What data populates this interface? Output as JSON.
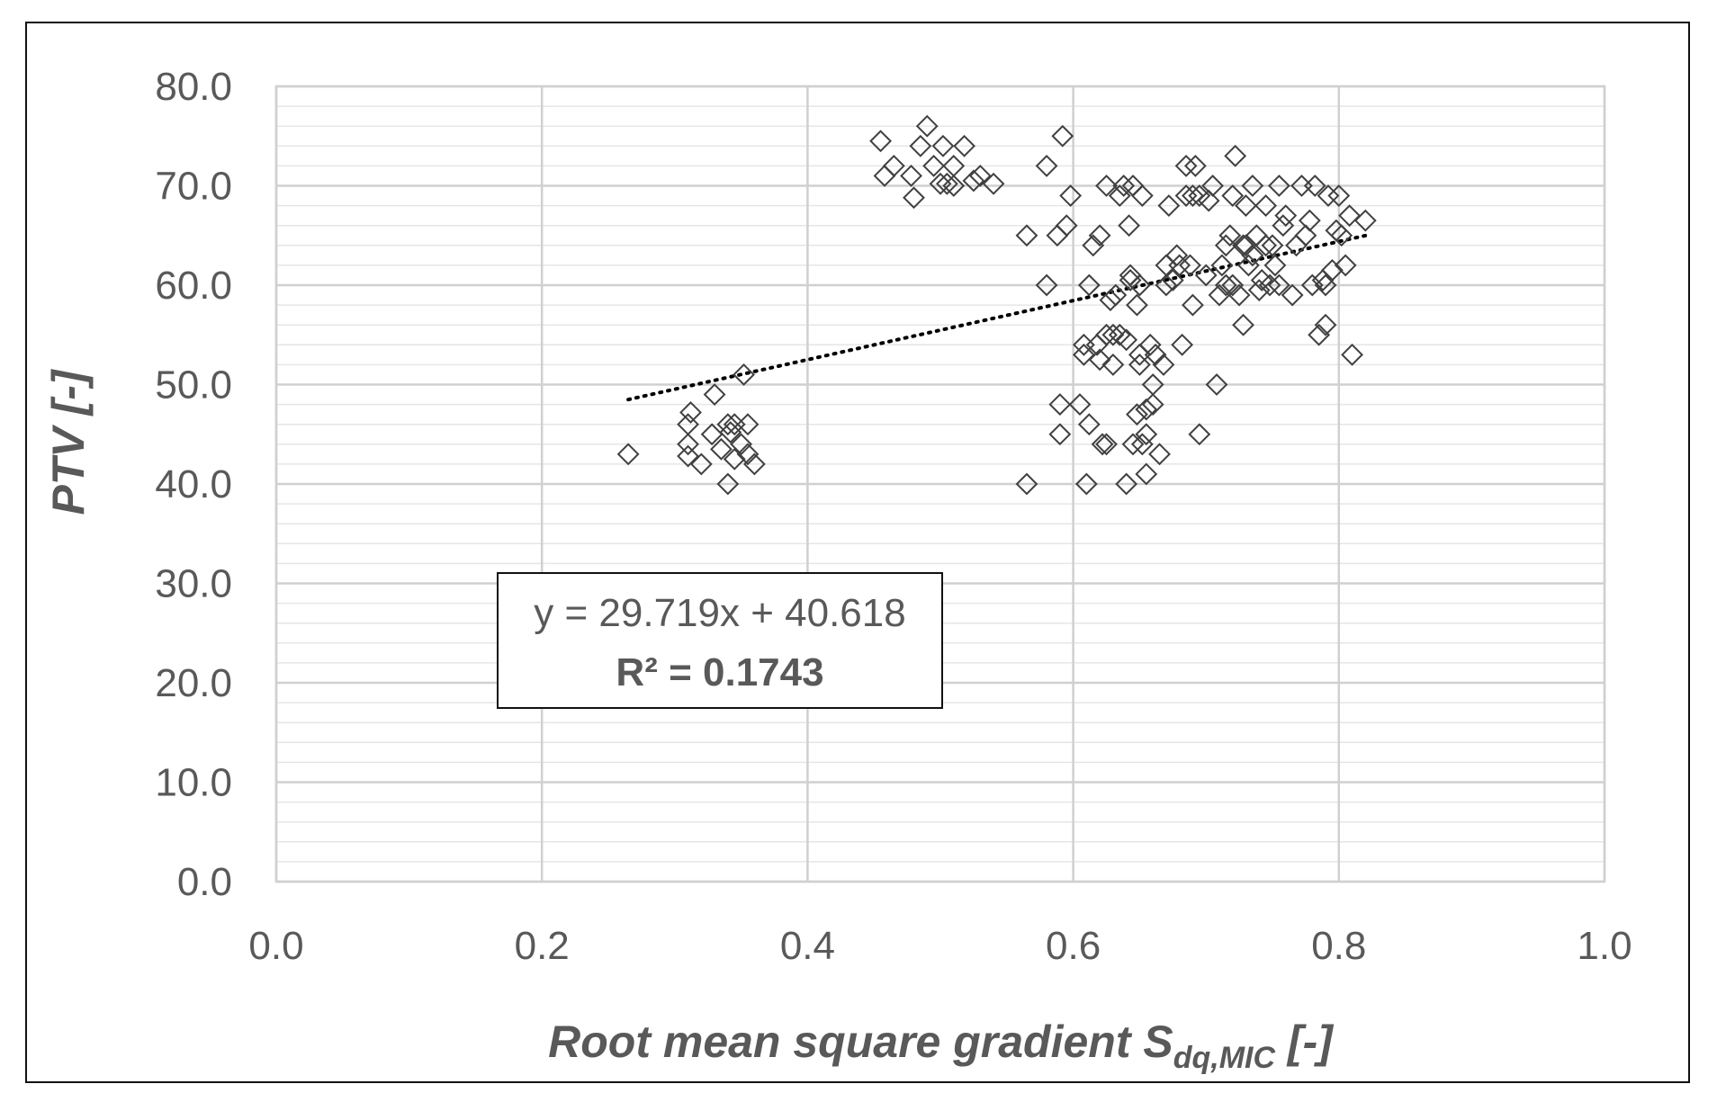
{
  "chart_data": {
    "type": "scatter",
    "title": "",
    "xlabel": "Root mean square gradient S",
    "xlabel_subscript": "dq,MIC",
    "xlabel_suffix": " [-]",
    "ylabel": "PTV [-]",
    "xlim": [
      0,
      1
    ],
    "ylim": [
      0,
      80
    ],
    "x_ticks": [
      "0.0",
      "0.2",
      "0.4",
      "0.6",
      "0.8",
      "1.0"
    ],
    "y_ticks": [
      "0.0",
      "10.0",
      "20.0",
      "30.0",
      "40.0",
      "50.0",
      "60.0",
      "70.0",
      "80.0"
    ],
    "grid": true,
    "marker": "diamond-open",
    "marker_color": "#404040",
    "trendline": {
      "type": "linear",
      "slope": 29.719,
      "intercept": 40.618,
      "x_range": [
        0.265,
        0.82
      ],
      "style": "dotted",
      "color": "#000000"
    },
    "equation_label": "y = 29.719x + 40.618",
    "r2_label": "R² = 0.1743",
    "points": [
      [
        0.265,
        43.0
      ],
      [
        0.31,
        42.8
      ],
      [
        0.31,
        44.0
      ],
      [
        0.31,
        46.0
      ],
      [
        0.312,
        47.2
      ],
      [
        0.32,
        42.0
      ],
      [
        0.328,
        45.0
      ],
      [
        0.33,
        49.0
      ],
      [
        0.335,
        43.5
      ],
      [
        0.34,
        40.0
      ],
      [
        0.34,
        46.0
      ],
      [
        0.342,
        45.2
      ],
      [
        0.345,
        42.5
      ],
      [
        0.345,
        46.0
      ],
      [
        0.35,
        44.0
      ],
      [
        0.352,
        51.0
      ],
      [
        0.355,
        46.0
      ],
      [
        0.355,
        43.0
      ],
      [
        0.36,
        42.0
      ],
      [
        0.455,
        74.5
      ],
      [
        0.458,
        71.0
      ],
      [
        0.465,
        72.0
      ],
      [
        0.478,
        71.0
      ],
      [
        0.48,
        68.8
      ],
      [
        0.485,
        74.0
      ],
      [
        0.49,
        76.0
      ],
      [
        0.495,
        72.0
      ],
      [
        0.5,
        70.2
      ],
      [
        0.502,
        74.0
      ],
      [
        0.505,
        70.2
      ],
      [
        0.51,
        72.0
      ],
      [
        0.51,
        70.0
      ],
      [
        0.518,
        74.0
      ],
      [
        0.525,
        70.5
      ],
      [
        0.53,
        71.0
      ],
      [
        0.54,
        70.2
      ],
      [
        0.565,
        40.0
      ],
      [
        0.565,
        65.0
      ],
      [
        0.58,
        60.0
      ],
      [
        0.58,
        72.0
      ],
      [
        0.588,
        65.0
      ],
      [
        0.59,
        45.0
      ],
      [
        0.59,
        48.0
      ],
      [
        0.592,
        75.0
      ],
      [
        0.595,
        66.0
      ],
      [
        0.598,
        69.0
      ],
      [
        0.605,
        48.0
      ],
      [
        0.608,
        53.0
      ],
      [
        0.608,
        54.0
      ],
      [
        0.61,
        40.0
      ],
      [
        0.612,
        60.0
      ],
      [
        0.612,
        46.0
      ],
      [
        0.615,
        64.0
      ],
      [
        0.618,
        54.0
      ],
      [
        0.62,
        52.5
      ],
      [
        0.62,
        65.0
      ],
      [
        0.622,
        44.0
      ],
      [
        0.625,
        44.0
      ],
      [
        0.625,
        55.0
      ],
      [
        0.625,
        70.0
      ],
      [
        0.628,
        58.5
      ],
      [
        0.63,
        55.0
      ],
      [
        0.63,
        52.0
      ],
      [
        0.632,
        59.0
      ],
      [
        0.635,
        55.0
      ],
      [
        0.635,
        69.0
      ],
      [
        0.638,
        70.0
      ],
      [
        0.64,
        54.5
      ],
      [
        0.64,
        40.0
      ],
      [
        0.642,
        66.0
      ],
      [
        0.643,
        60.5
      ],
      [
        0.643,
        61.0
      ],
      [
        0.645,
        44.0
      ],
      [
        0.645,
        70.0
      ],
      [
        0.648,
        58.0
      ],
      [
        0.648,
        47.0
      ],
      [
        0.65,
        52.0
      ],
      [
        0.65,
        53.0
      ],
      [
        0.65,
        60.0
      ],
      [
        0.652,
        44.0
      ],
      [
        0.652,
        69.0
      ],
      [
        0.655,
        45.0
      ],
      [
        0.655,
        41.0
      ],
      [
        0.655,
        47.5
      ],
      [
        0.658,
        54.0
      ],
      [
        0.66,
        50.0
      ],
      [
        0.66,
        48.0
      ],
      [
        0.662,
        53.0
      ],
      [
        0.665,
        43.0
      ],
      [
        0.668,
        52.0
      ],
      [
        0.67,
        60.0
      ],
      [
        0.67,
        62.0
      ],
      [
        0.672,
        68.0
      ],
      [
        0.675,
        60.5
      ],
      [
        0.678,
        63.0
      ],
      [
        0.68,
        62.0
      ],
      [
        0.682,
        54.0
      ],
      [
        0.685,
        72.0
      ],
      [
        0.685,
        69.0
      ],
      [
        0.688,
        62.0
      ],
      [
        0.69,
        69.0
      ],
      [
        0.69,
        58.0
      ],
      [
        0.692,
        72.0
      ],
      [
        0.695,
        45.0
      ],
      [
        0.695,
        69.0
      ],
      [
        0.7,
        61.0
      ],
      [
        0.702,
        68.5
      ],
      [
        0.705,
        70.0
      ],
      [
        0.708,
        50.0
      ],
      [
        0.71,
        59.0
      ],
      [
        0.712,
        62.0
      ],
      [
        0.715,
        60.0
      ],
      [
        0.715,
        64.0
      ],
      [
        0.718,
        65.0
      ],
      [
        0.72,
        60.0
      ],
      [
        0.72,
        69.0
      ],
      [
        0.722,
        73.0
      ],
      [
        0.725,
        59.0
      ],
      [
        0.728,
        56.0
      ],
      [
        0.728,
        64.0
      ],
      [
        0.73,
        64.0
      ],
      [
        0.73,
        68.0
      ],
      [
        0.732,
        62.0
      ],
      [
        0.735,
        63.0
      ],
      [
        0.735,
        70.0
      ],
      [
        0.738,
        65.0
      ],
      [
        0.74,
        59.5
      ],
      [
        0.742,
        60.5
      ],
      [
        0.745,
        64.0
      ],
      [
        0.745,
        68.0
      ],
      [
        0.748,
        60.0
      ],
      [
        0.75,
        64.0
      ],
      [
        0.752,
        62.0
      ],
      [
        0.755,
        60.0
      ],
      [
        0.755,
        70.0
      ],
      [
        0.758,
        66.0
      ],
      [
        0.76,
        67.0
      ],
      [
        0.765,
        59.0
      ],
      [
        0.768,
        64.0
      ],
      [
        0.772,
        70.0
      ],
      [
        0.775,
        65.0
      ],
      [
        0.778,
        66.5
      ],
      [
        0.78,
        60.0
      ],
      [
        0.782,
        70.0
      ],
      [
        0.785,
        55.0
      ],
      [
        0.788,
        60.5
      ],
      [
        0.79,
        56.0
      ],
      [
        0.79,
        60.0
      ],
      [
        0.792,
        69.0
      ],
      [
        0.795,
        61.5
      ],
      [
        0.798,
        65.5
      ],
      [
        0.8,
        69.0
      ],
      [
        0.802,
        65.0
      ],
      [
        0.805,
        62.0
      ],
      [
        0.808,
        67.0
      ],
      [
        0.81,
        53.0
      ],
      [
        0.82,
        66.5
      ]
    ]
  }
}
